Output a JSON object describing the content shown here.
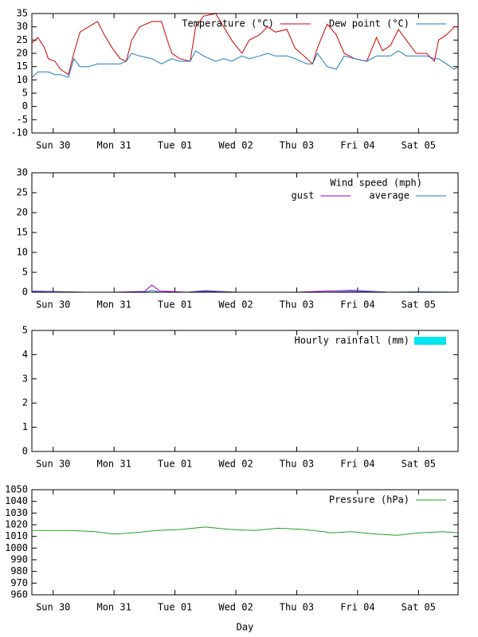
{
  "chart_data": [
    {
      "type": "line",
      "x": [
        -0.34,
        -0.25,
        -0.14,
        -0.08,
        0.03,
        0.12,
        0.25,
        0.34,
        0.44,
        0.58,
        0.73,
        0.84,
        0.97,
        1.1,
        1.2,
        1.29,
        1.42,
        1.62,
        1.78,
        1.86,
        1.95,
        2.08,
        2.25,
        2.34,
        2.47,
        2.67,
        2.8,
        2.93,
        3.1,
        3.22,
        3.39,
        3.52,
        3.65,
        3.84,
        3.97,
        4.17,
        4.26,
        4.34,
        4.5,
        4.65,
        4.78,
        4.95,
        5.15,
        5.31,
        5.41,
        5.54,
        5.67,
        5.8,
        5.96,
        6.13,
        6.26,
        6.33,
        6.46,
        6.59,
        6.65
      ],
      "series": [
        {
          "name": "Temperature (°C)",
          "color": "#d40000",
          "values": [
            24,
            26,
            22,
            18,
            17,
            14,
            12,
            20,
            28,
            30,
            32,
            27,
            22,
            18,
            17,
            25,
            30,
            32,
            32,
            26,
            20,
            18,
            17,
            30,
            34,
            35,
            30,
            25,
            20,
            25,
            27,
            30,
            28,
            29,
            22,
            18,
            16,
            22,
            31,
            27,
            20,
            18,
            17,
            26,
            21,
            23,
            29,
            25,
            20,
            20,
            17,
            25,
            27,
            30,
            30
          ]
        },
        {
          "name": "Dew point (°C)",
          "color": "#1e7ac8",
          "values": [
            11,
            13,
            13,
            13,
            12,
            12,
            11,
            18,
            15,
            15,
            16,
            16,
            16,
            16,
            17,
            20,
            19,
            18,
            16,
            17,
            18,
            17,
            17,
            21,
            19,
            17,
            18,
            17,
            19,
            18,
            19,
            20,
            19,
            19,
            18,
            16,
            16,
            20,
            15,
            14,
            19,
            18,
            17,
            19,
            19,
            19,
            21,
            19,
            19,
            19,
            18,
            18,
            16,
            14,
            15
          ]
        }
      ],
      "xlim": [
        -0.35,
        6.65
      ],
      "xticks": [
        {
          "value": 0,
          "label": "Sun 30"
        },
        {
          "value": 1,
          "label": "Mon 31"
        },
        {
          "value": 2,
          "label": "Tue 01"
        },
        {
          "value": 3,
          "label": "Wed 02"
        },
        {
          "value": 4,
          "label": "Thu 03"
        },
        {
          "value": 5,
          "label": "Fri 04"
        },
        {
          "value": 6,
          "label": "Sat 05"
        }
      ],
      "ylim": [
        -10,
        35
      ],
      "yticks": [
        -10,
        -5,
        0,
        5,
        10,
        15,
        20,
        25,
        30,
        35
      ]
    },
    {
      "type": "line",
      "x": [
        -0.34,
        0.5,
        1.0,
        1.5,
        1.62,
        1.75,
        2.2,
        2.5,
        3.0,
        3.5,
        4.0,
        4.5,
        4.9,
        5.5,
        6.0,
        6.65
      ],
      "legend_title": "Wind speed (mph)",
      "series": [
        {
          "name": "gust",
          "color": "#9400d3",
          "values": [
            0.3,
            0,
            0,
            0.2,
            1.8,
            0.3,
            0,
            0.4,
            0,
            0,
            0,
            0.3,
            0.5,
            0,
            0,
            0
          ]
        },
        {
          "name": "average",
          "color": "#1e7ac8",
          "values": [
            0.2,
            0,
            0,
            0,
            0.5,
            0,
            0,
            0.2,
            0,
            0,
            0,
            0,
            0.2,
            0,
            0.1,
            0
          ]
        }
      ],
      "xlim": [
        -0.35,
        6.65
      ],
      "xticks": [
        {
          "value": 0,
          "label": "Sun 30"
        },
        {
          "value": 1,
          "label": "Mon 31"
        },
        {
          "value": 2,
          "label": "Tue 01"
        },
        {
          "value": 3,
          "label": "Wed 02"
        },
        {
          "value": 4,
          "label": "Thu 03"
        },
        {
          "value": 5,
          "label": "Fri 04"
        },
        {
          "value": 6,
          "label": "Sat 05"
        }
      ],
      "ylim": [
        0,
        30
      ],
      "yticks": [
        0,
        5,
        10,
        15,
        20,
        25,
        30
      ]
    },
    {
      "type": "bar",
      "x": [
        -0.34,
        0.5,
        1.0,
        1.5,
        2.0,
        2.5,
        3.0,
        3.5,
        4.0,
        4.5,
        5.0,
        5.5,
        6.0,
        6.5
      ],
      "series": [
        {
          "name": "Hourly rainfall (mm)",
          "color": "#00e5ee",
          "values": [
            0,
            0,
            0,
            0,
            0,
            0,
            0,
            0,
            0,
            0,
            0,
            0,
            0,
            0
          ]
        }
      ],
      "xlim": [
        -0.35,
        6.65
      ],
      "xticks": [
        {
          "value": 0,
          "label": "Sun 30"
        },
        {
          "value": 1,
          "label": "Mon 31"
        },
        {
          "value": 2,
          "label": "Tue 01"
        },
        {
          "value": 3,
          "label": "Wed 02"
        },
        {
          "value": 4,
          "label": "Thu 03"
        },
        {
          "value": 5,
          "label": "Fri 04"
        },
        {
          "value": 6,
          "label": "Sat 05"
        }
      ],
      "ylim": [
        0,
        5
      ],
      "yticks": [
        0,
        1,
        2,
        3,
        4,
        5
      ]
    },
    {
      "type": "line",
      "x": [
        -0.34,
        0.3,
        0.7,
        1.0,
        1.3,
        1.7,
        2.1,
        2.5,
        2.9,
        3.3,
        3.7,
        4.1,
        4.45,
        4.55,
        4.9,
        5.3,
        5.65,
        6.0,
        6.4,
        6.65
      ],
      "series": [
        {
          "name": "Pressure (hPa)",
          "color": "#22a022",
          "values": [
            1015,
            1015,
            1014,
            1012,
            1013,
            1015,
            1016,
            1018,
            1016,
            1015,
            1017,
            1016,
            1014,
            1013,
            1014,
            1012,
            1011,
            1013,
            1014,
            1013
          ]
        }
      ],
      "xlim": [
        -0.35,
        6.65
      ],
      "xticks": [
        {
          "value": 0,
          "label": "Sun 30"
        },
        {
          "value": 1,
          "label": "Mon 31"
        },
        {
          "value": 2,
          "label": "Tue 01"
        },
        {
          "value": 3,
          "label": "Wed 02"
        },
        {
          "value": 4,
          "label": "Thu 03"
        },
        {
          "value": 5,
          "label": "Fri 04"
        },
        {
          "value": 6,
          "label": "Sat 05"
        }
      ],
      "ylim": [
        960,
        1050
      ],
      "yticks": [
        960,
        970,
        980,
        990,
        1000,
        1010,
        1020,
        1030,
        1040,
        1050
      ],
      "xlabel": "Day"
    }
  ]
}
